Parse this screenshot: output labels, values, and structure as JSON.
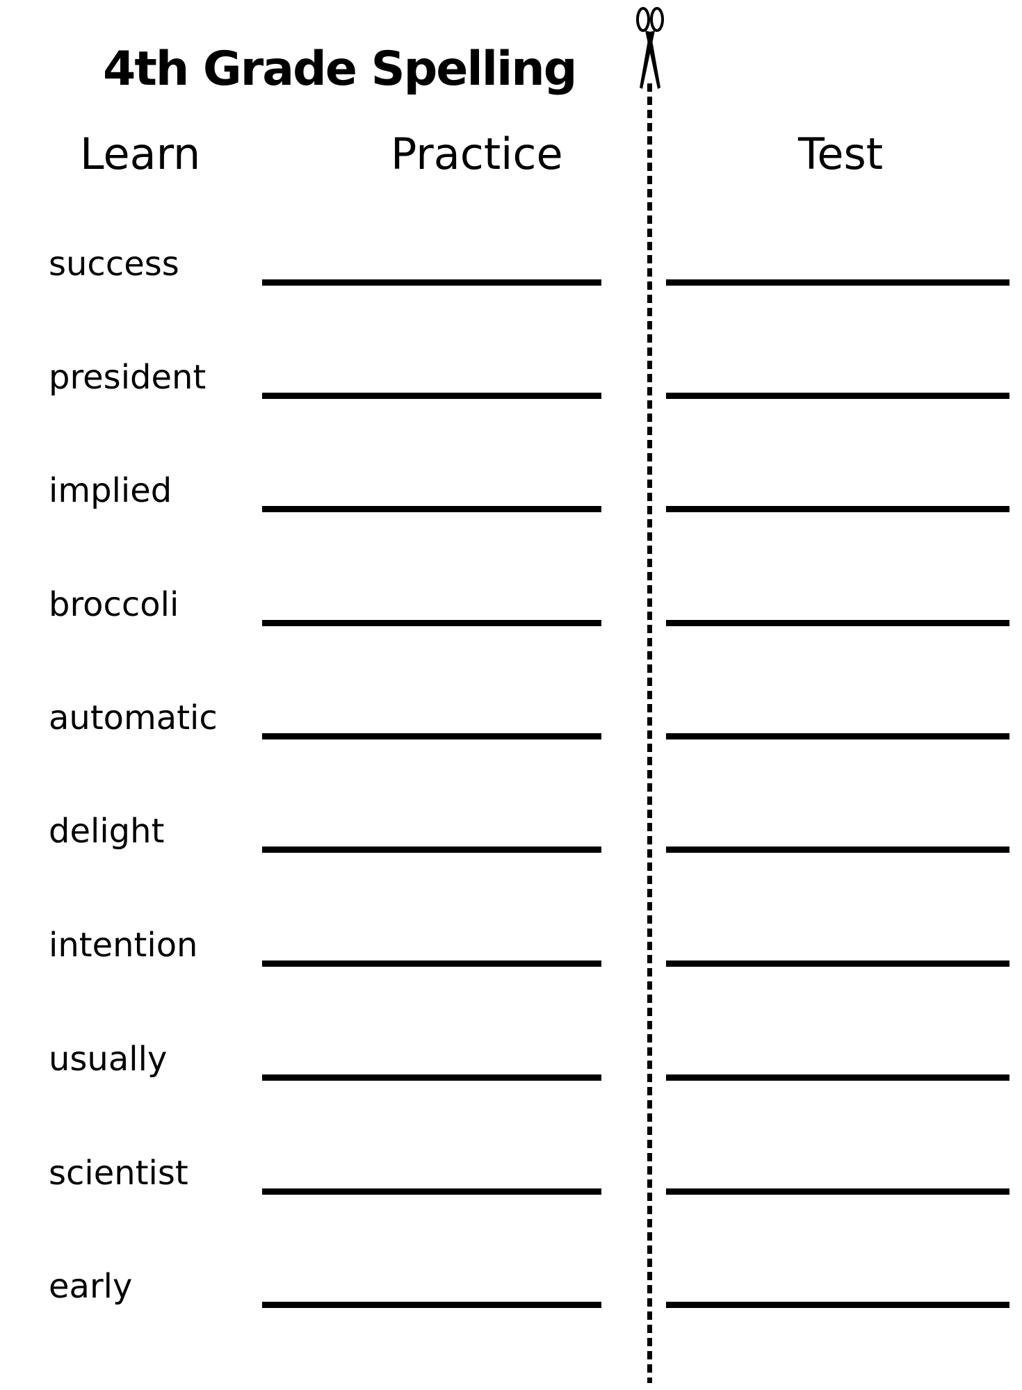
{
  "title": "4th Grade Spelling",
  "columns": {
    "learn": "Learn",
    "practice": "Practice",
    "test": "Test"
  },
  "icons": {
    "cut_line": "scissors-icon"
  },
  "words": [
    "success",
    "president",
    "implied",
    "broccoli",
    "automatic",
    "delight",
    "intention",
    "usually",
    "scientist",
    "early"
  ]
}
